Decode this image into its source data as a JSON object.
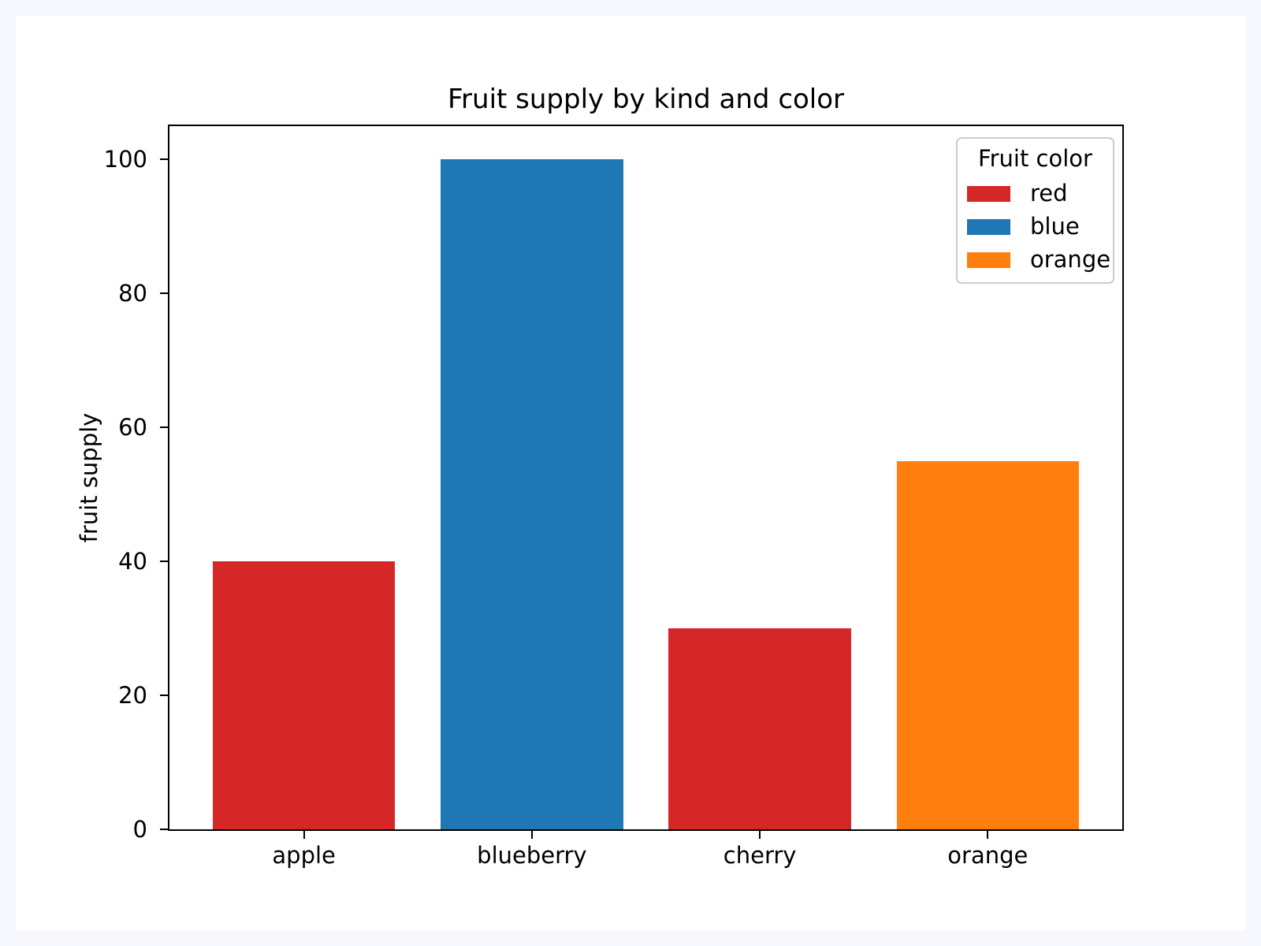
{
  "chart_data": {
    "type": "bar",
    "title": "Fruit supply by kind and color",
    "xlabel": "",
    "ylabel": "fruit supply",
    "categories": [
      "apple",
      "blueberry",
      "cherry",
      "orange"
    ],
    "values": [
      40,
      100,
      30,
      55
    ],
    "bar_colors": [
      "#d62728",
      "#1f77b4",
      "#d62728",
      "#ff7f0e"
    ],
    "yticks": [
      0,
      20,
      40,
      60,
      80,
      100
    ],
    "ylim": [
      0,
      105
    ],
    "xlim": [
      -0.59,
      3.59
    ],
    "bar_width": 0.8,
    "grid": false,
    "legend": {
      "title": "Fruit color",
      "position": "upper right",
      "entries": [
        {
          "label": "red",
          "color": "#d62728"
        },
        {
          "label": "blue",
          "color": "#1f77b4"
        },
        {
          "label": "orange",
          "color": "#ff7f0e"
        }
      ]
    },
    "colors": {
      "page_background": "#f6f8fd",
      "figure_background": "#ffffff",
      "axes_background": "#ffffff",
      "spine": "#000000",
      "text": "#000000",
      "legend_border": "#cccccc"
    }
  }
}
